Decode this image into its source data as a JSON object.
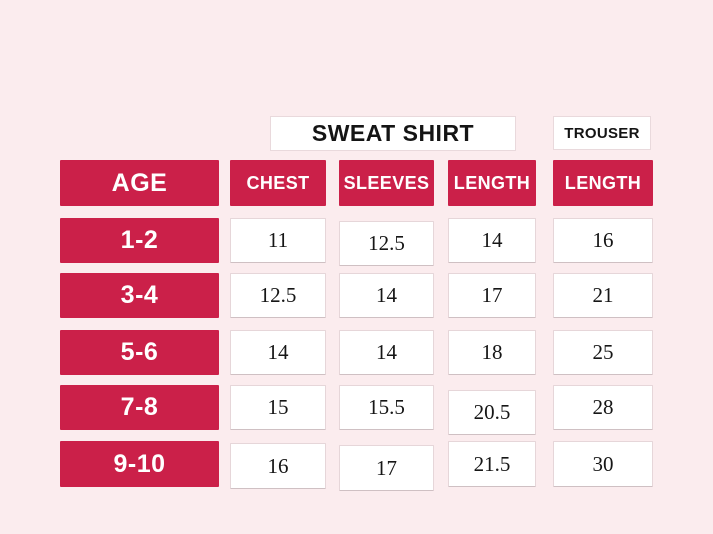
{
  "colors": {
    "background": "#fbecee",
    "accent_red": "#cb2049",
    "cell_background": "#ffffff",
    "cell_border": "#e6d6d9",
    "text_dark": "#161616",
    "text_on_red": "#ffffff"
  },
  "chart_data": {
    "type": "table",
    "title": "SWEAT SHIRT",
    "column_groups": [
      {
        "label": "SWEAT SHIRT",
        "covers": [
          "CHEST",
          "SLEEVES",
          "LENGTH"
        ]
      },
      {
        "label": "TROUSER",
        "covers": [
          "LENGTH"
        ]
      }
    ],
    "columns": [
      "AGE",
      "CHEST",
      "SLEEVES",
      "LENGTH",
      "LENGTH"
    ],
    "rows": [
      [
        "1-2",
        "11",
        "12.5",
        "14",
        "16"
      ],
      [
        "3-4",
        "12.5",
        "14",
        "17",
        "21"
      ],
      [
        "5-6",
        "14",
        "14",
        "18",
        "25"
      ],
      [
        "7-8",
        "15",
        "15.5",
        "20.5",
        "28"
      ],
      [
        "9-10",
        "16",
        "17",
        "21.5",
        "30"
      ]
    ]
  }
}
